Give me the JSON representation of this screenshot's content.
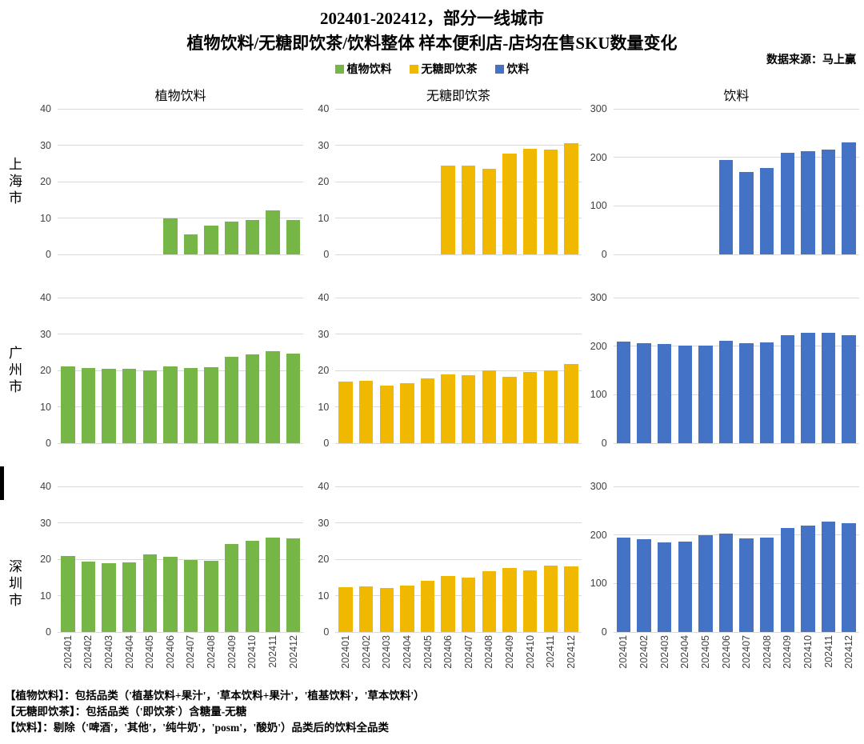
{
  "header": {
    "title_line1": "202401-202412，部分一线城市",
    "title_line2": "植物饮料/无糖即饮茶/饮料整体 样本便利店-店均在售SKU数量变化",
    "source": "数据来源：马上赢"
  },
  "legend": [
    {
      "label": "植物饮料",
      "color": "#76B647"
    },
    {
      "label": "无糖即饮茶",
      "color": "#F0B800"
    },
    {
      "label": "饮料",
      "color": "#4472C4"
    }
  ],
  "chart_data": {
    "type": "bar",
    "layout": "3x3 small multiples: rows = cities, columns = categories",
    "grid": true,
    "categories": [
      "202401",
      "202402",
      "202403",
      "202404",
      "202405",
      "202406",
      "202407",
      "202408",
      "202409",
      "202410",
      "202411",
      "202412"
    ],
    "columns": [
      {
        "title": "植物饮料",
        "color": "#76B647",
        "ylim": [
          0,
          40
        ],
        "yticks": [
          0,
          10,
          20,
          30,
          40
        ]
      },
      {
        "title": "无糖即饮茶",
        "color": "#F0B800",
        "ylim": [
          0,
          40
        ],
        "yticks": [
          0,
          10,
          20,
          30,
          40
        ]
      },
      {
        "title": "饮料",
        "color": "#4472C4",
        "ylim": [
          0,
          300
        ],
        "yticks": [
          0,
          100,
          200,
          300
        ]
      }
    ],
    "rows": [
      {
        "city": "上海市",
        "series": [
          {
            "name": "植物饮料",
            "values": [
              null,
              null,
              null,
              null,
              null,
              10,
              5.5,
              8,
              9,
              9.5,
              12,
              9.5
            ]
          },
          {
            "name": "无糖即饮茶",
            "values": [
              null,
              null,
              null,
              null,
              null,
              24.5,
              24.3,
              23.6,
              27.8,
              29,
              28.7,
              30.5
            ]
          },
          {
            "name": "饮料",
            "values": [
              null,
              null,
              null,
              null,
              null,
              194,
              170,
              178,
              210,
              212,
              216,
              230
            ]
          }
        ]
      },
      {
        "city": "广州市",
        "series": [
          {
            "name": "植物饮料",
            "values": [
              21.2,
              20.6,
              20.5,
              20.4,
              19.9,
              21,
              20.6,
              20.8,
              23.8,
              24.4,
              25.2,
              24.6
            ]
          },
          {
            "name": "无糖即饮茶",
            "values": [
              17,
              17.2,
              15.9,
              16.4,
              17.7,
              19,
              18.6,
              20,
              18.3,
              19.5,
              20.1,
              21.8
            ]
          },
          {
            "name": "饮料",
            "values": [
              209,
              206,
              204,
              201,
              201,
              211,
              206,
              208,
              222,
              227,
              228,
              223
            ]
          }
        ]
      },
      {
        "city": "深圳市",
        "series": [
          {
            "name": "植物饮料",
            "values": [
              20.8,
              19.4,
              19,
              19.1,
              21.3,
              20.7,
              19.8,
              19.6,
              24.2,
              25.1,
              25.9,
              25.7
            ]
          },
          {
            "name": "无糖即饮茶",
            "values": [
              12.4,
              12.6,
              12.2,
              12.8,
              14.1,
              15.3,
              15,
              16.6,
              17.6,
              17,
              18.3,
              18
            ]
          },
          {
            "name": "饮料",
            "values": [
              195,
              191,
              185,
              186,
              200,
              203,
              193,
              194,
              215,
              219,
              227,
              225
            ]
          }
        ]
      }
    ]
  },
  "footnotes": [
    "【植物饮料】：包括品类（'植基饮料+果汁'，'草本饮料+果汁'，'植基饮料'，'草本饮料'）",
    "【无糖即饮茶】：包括品类（'即饮茶'）含糖量-无糖",
    "【饮料】：剔除（'啤酒'，'其他'，'纯牛奶'，'posm'，'酸奶'）品类后的饮料全品类"
  ]
}
